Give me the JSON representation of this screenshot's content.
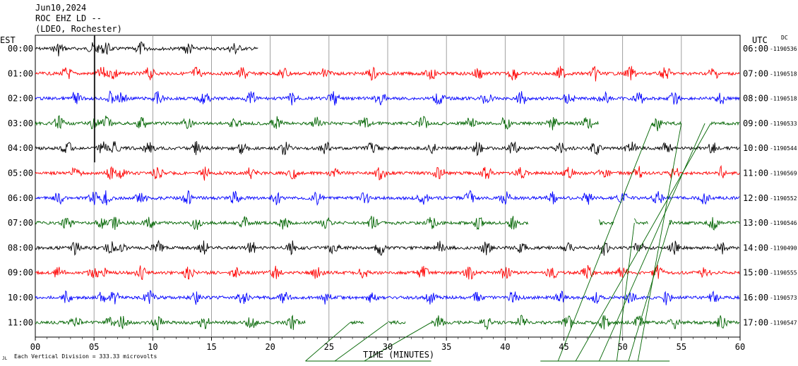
{
  "header": {
    "date": "Jun10,2024",
    "station": "ROC EHZ LD --",
    "network": "(LDEO, Rochester)"
  },
  "left_zone": "EST",
  "right_zone": "UTC",
  "dc_label": "DC",
  "footer": {
    "scale_note": "Each Vertical Division =  333.33 microvolts",
    "mark": "JL"
  },
  "chart_data": {
    "type": "line",
    "title": "Jun10,2024 ROC EHZ LD -- (LDEO, Rochester)",
    "xlabel": "TIME (MINUTES)",
    "xlim": [
      0,
      60
    ],
    "x_ticks": [
      "00",
      "05",
      "10",
      "15",
      "20",
      "25",
      "30",
      "35",
      "40",
      "45",
      "50",
      "55",
      "60"
    ],
    "grid": "vertical lines every 5 minutes",
    "trace_colors": [
      "#000000",
      "#ff0000",
      "#0000ff",
      "#006400"
    ],
    "series": [
      {
        "left_label": "00:00",
        "right_label": "06:00",
        "dc": "-1190536",
        "color": "#000000",
        "data_end_min": 19.0
      },
      {
        "left_label": "01:00",
        "right_label": "07:00",
        "dc": "-1190518",
        "color": "#ff0000",
        "data_end_min": 60
      },
      {
        "left_label": "02:00",
        "right_label": "08:00",
        "dc": "-1190518",
        "color": "#0000ff",
        "data_end_min": 60
      },
      {
        "left_label": "03:00",
        "right_label": "09:00",
        "dc": "-1190533",
        "color": "#006400",
        "data_end_min": 60,
        "gaps": [
          [
            48,
            52.5
          ],
          [
            55,
            57.5
          ]
        ]
      },
      {
        "left_label": "04:00",
        "right_label": "10:00",
        "dc": "-1190544",
        "color": "#000000",
        "data_end_min": 60
      },
      {
        "left_label": "05:00",
        "right_label": "11:00",
        "dc": "-1190569",
        "color": "#ff0000",
        "data_end_min": 60
      },
      {
        "left_label": "06:00",
        "right_label": "12:00",
        "dc": "-1190552",
        "color": "#0000ff",
        "data_end_min": 60
      },
      {
        "left_label": "07:00",
        "right_label": "13:00",
        "dc": "-1190546",
        "color": "#006400",
        "data_end_min": 60,
        "gaps": [
          [
            42,
            48
          ],
          [
            49.3,
            51
          ],
          [
            52.2,
            54
          ]
        ]
      },
      {
        "left_label": "08:00",
        "right_label": "14:00",
        "dc": "-1190490",
        "color": "#000000",
        "data_end_min": 60
      },
      {
        "left_label": "09:00",
        "right_label": "15:00",
        "dc": "-1190555",
        "color": "#ff0000",
        "data_end_min": 60
      },
      {
        "left_label": "10:00",
        "right_label": "16:00",
        "dc": "-1190573",
        "color": "#0000ff",
        "data_end_min": 60
      },
      {
        "left_label": "11:00",
        "right_label": "17:00",
        "dc": "-1190547",
        "color": "#006400",
        "data_end_min": 60,
        "gaps": [
          [
            23,
            26.8
          ],
          [
            28,
            30
          ],
          [
            31.5,
            33.7
          ]
        ]
      }
    ]
  }
}
